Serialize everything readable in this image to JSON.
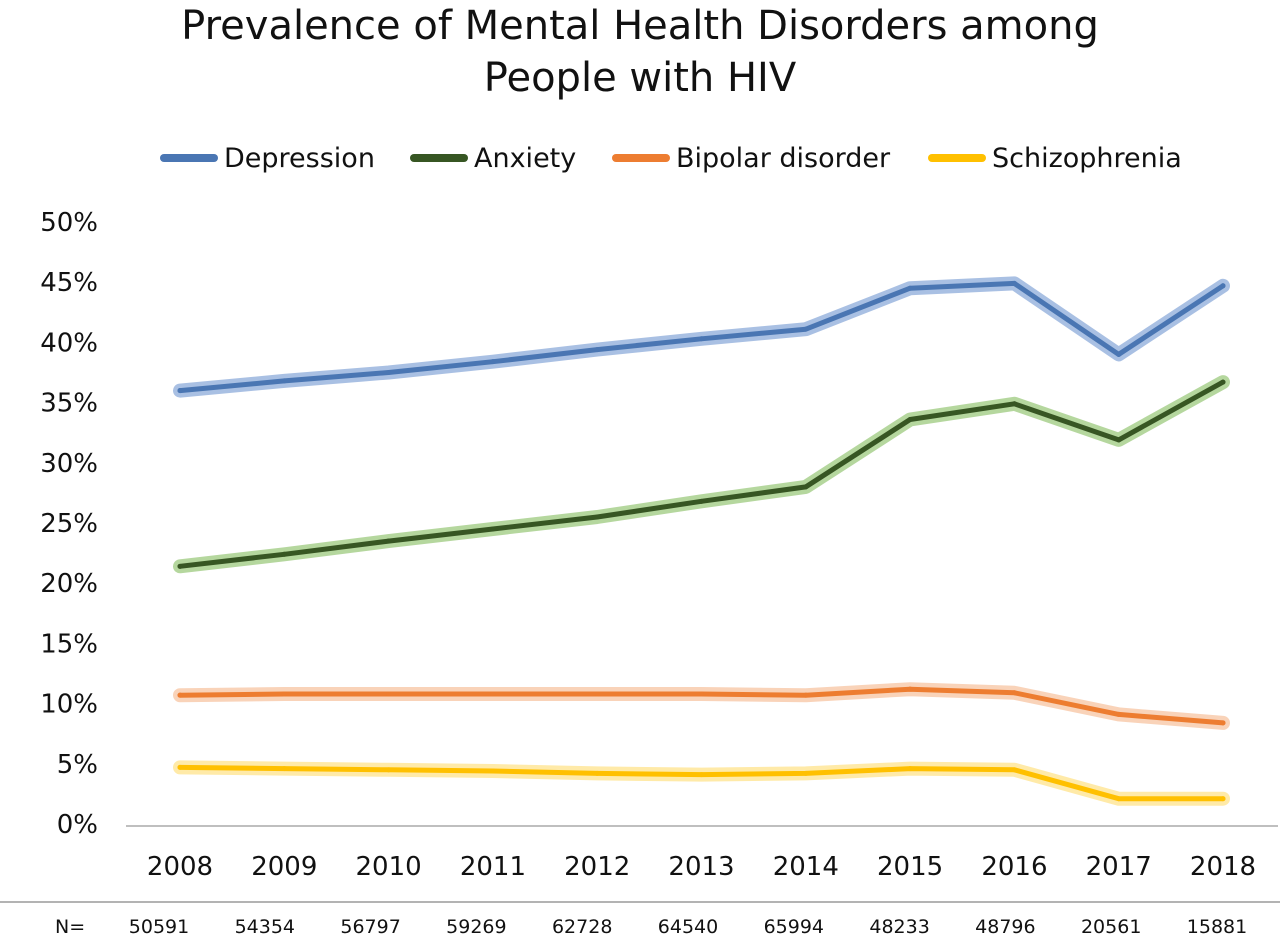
{
  "chart_data": {
    "type": "line",
    "title": [
      "Prevalence of Mental Health Disorders among",
      "People with HIV"
    ],
    "x": [
      "2008",
      "2009",
      "2010",
      "2011",
      "2012",
      "2013",
      "2014",
      "2015",
      "2016",
      "2017",
      "2018"
    ],
    "y_ticks": [
      "0%",
      "5%",
      "10%",
      "15%",
      "20%",
      "25%",
      "30%",
      "35%",
      "40%",
      "45%",
      "50%"
    ],
    "ylim": [
      0,
      50
    ],
    "legend_position": "top",
    "grid": false,
    "series": [
      {
        "name": "Depression",
        "color": "#4a76b3",
        "band_color": "#9ab5de",
        "values": [
          36.0,
          36.8,
          37.5,
          38.4,
          39.4,
          40.3,
          41.1,
          44.5,
          44.9,
          39.0,
          44.7
        ]
      },
      {
        "name": "Anxiety",
        "color": "#375623",
        "band_color": "#a8d08d",
        "values": [
          21.4,
          22.4,
          23.5,
          24.5,
          25.5,
          26.8,
          28.0,
          33.6,
          34.9,
          31.9,
          36.7
        ]
      },
      {
        "name": "Bipolar disorder",
        "color": "#ed7d31",
        "band_color": "#f8cbad",
        "values": [
          10.7,
          10.8,
          10.8,
          10.8,
          10.8,
          10.8,
          10.7,
          11.2,
          10.9,
          9.1,
          8.4
        ]
      },
      {
        "name": "Schizophrenia",
        "color": "#ffc000",
        "band_color": "#ffe699",
        "values": [
          4.7,
          4.6,
          4.5,
          4.4,
          4.2,
          4.1,
          4.2,
          4.6,
          4.5,
          2.1,
          2.1
        ]
      }
    ],
    "n_label": "N=",
    "n_values": [
      "50591",
      "54354",
      "56797",
      "59269",
      "62728",
      "64540",
      "65994",
      "48233",
      "48796",
      "20561",
      "15881"
    ]
  }
}
